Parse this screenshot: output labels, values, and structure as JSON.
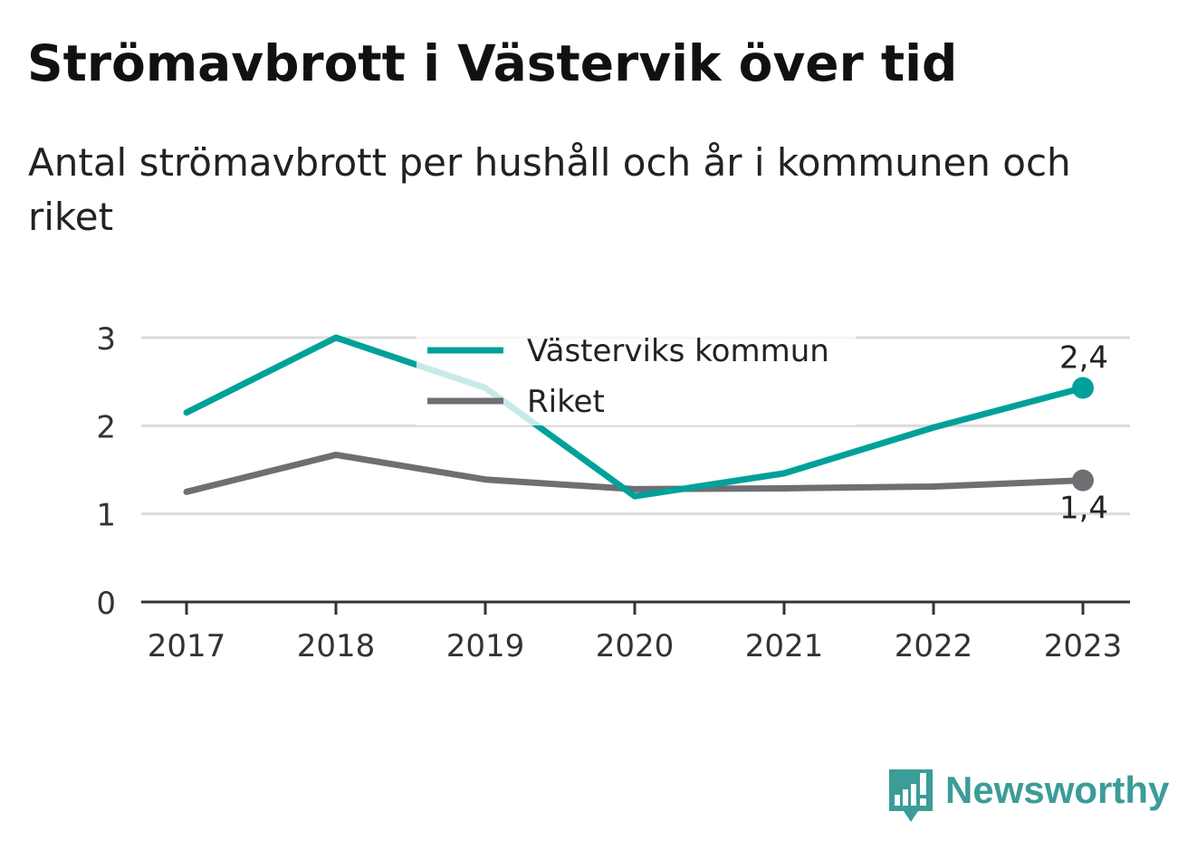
{
  "title": "Strömavbrott i Västervik över tid",
  "subtitle": "Antal strömavbrott per hushåll och år i kommunen och riket",
  "brand": {
    "name": "Newsworthy",
    "logo_icon": "newsworthy-chart-bubble-icon",
    "color": "#3b9c98"
  },
  "chart_data": {
    "type": "line",
    "x": [
      "2017",
      "2018",
      "2019",
      "2020",
      "2021",
      "2022",
      "2023"
    ],
    "ylim": [
      0,
      3
    ],
    "yticks": [
      "0",
      "1",
      "2",
      "3"
    ],
    "grid": true,
    "legend_position": "top-center",
    "xlabel": "",
    "ylabel": "",
    "series": [
      {
        "name": "Västerviks kommun",
        "color": "#00a19a",
        "values": [
          2.15,
          3.0,
          2.43,
          1.2,
          1.46,
          1.98,
          2.43
        ],
        "end_label": "2,4"
      },
      {
        "name": "Riket",
        "color": "#6f6e73",
        "values": [
          1.25,
          1.67,
          1.39,
          1.28,
          1.29,
          1.31,
          1.38
        ],
        "end_label": "1,4"
      }
    ]
  }
}
